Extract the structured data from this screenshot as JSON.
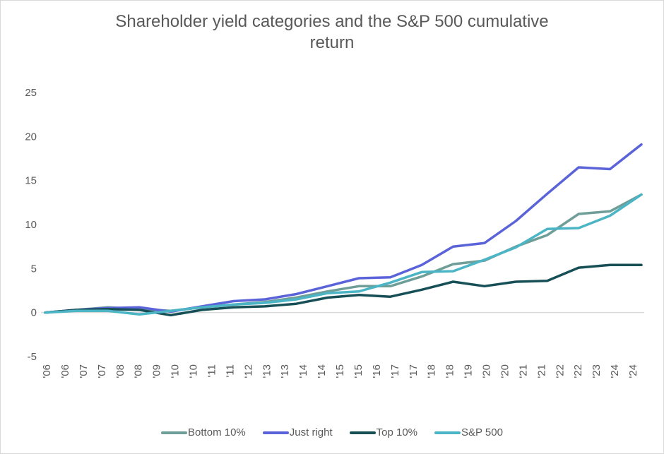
{
  "chart_data": {
    "type": "line",
    "title": "Shareholder yield categories and the S&P 500 cumulative return",
    "title_lines": [
      "Shareholder yield categories and the S&P 500 cumulative",
      "return"
    ],
    "xlabel": "",
    "ylabel": "",
    "ylim": [
      -5,
      25
    ],
    "yticks": [
      -5,
      0,
      5,
      10,
      15,
      20,
      25
    ],
    "grid": false,
    "zero_line": true,
    "legend_position": "bottom",
    "xtick_labels": [
      "'06",
      "'06",
      "'07",
      "'07",
      "'08",
      "'08",
      "'09",
      "'10",
      "'10",
      "'11",
      "'11",
      "'12",
      "'13",
      "'13",
      "'14",
      "'14",
      "'15",
      "'15",
      "'16",
      "'17",
      "'17",
      "'18",
      "'18",
      "'19",
      "'20",
      "'20",
      "'21",
      "'21",
      "'22",
      "'22",
      "'23",
      "'24",
      "'24"
    ],
    "x": [
      0,
      1,
      2,
      3,
      4,
      5,
      6,
      7,
      8,
      9,
      10,
      11,
      12,
      13,
      14,
      15,
      16,
      17,
      18,
      19
    ],
    "series": [
      {
        "name": "Bottom 10%",
        "color": "#6f9e98",
        "values": [
          0,
          0.3,
          0.6,
          0.4,
          0.2,
          0.6,
          0.9,
          1.2,
          1.7,
          2.4,
          3.0,
          3.0,
          4.1,
          5.5,
          5.9,
          7.5,
          8.8,
          11.2,
          11.5,
          13.4
        ]
      },
      {
        "name": "Just right",
        "color": "#5b63d8",
        "values": [
          0,
          0.3,
          0.5,
          0.6,
          0.1,
          0.7,
          1.3,
          1.5,
          2.1,
          3.0,
          3.9,
          4.0,
          5.4,
          7.5,
          7.9,
          10.4,
          13.5,
          16.5,
          16.3,
          19.1
        ]
      },
      {
        "name": "Top 10%",
        "color": "#174f57",
        "values": [
          0,
          0.3,
          0.4,
          0.3,
          -0.3,
          0.3,
          0.6,
          0.7,
          1.0,
          1.7,
          2.0,
          1.8,
          2.6,
          3.5,
          3.0,
          3.5,
          3.6,
          5.1,
          5.4,
          5.4
        ]
      },
      {
        "name": "S&P 500",
        "color": "#4bb5c6",
        "values": [
          0,
          0.2,
          0.2,
          -0.2,
          0.2,
          0.6,
          0.9,
          1.1,
          1.5,
          2.2,
          2.4,
          3.4,
          4.6,
          4.7,
          6.0,
          7.4,
          9.5,
          9.6,
          11.0,
          13.4
        ]
      }
    ]
  }
}
